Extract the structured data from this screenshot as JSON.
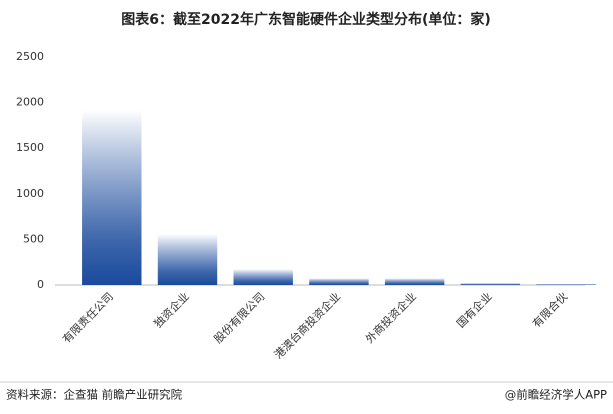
{
  "chart_data": {
    "type": "bar",
    "title": "图表6：截至2022年广东智能硬件企业类型分布(单位：家)",
    "categories": [
      "有限责任公司",
      "独资企业",
      "股份有限公司",
      "港澳台商投资企业",
      "外商投资企业",
      "国有企业",
      "有限合伙"
    ],
    "values": [
      1920,
      560,
      175,
      75,
      75,
      20,
      10
    ],
    "color": "#1a4a9c",
    "ylim": [
      0,
      2500
    ],
    "yticks": [
      0,
      500,
      1000,
      1500,
      2000,
      2500
    ],
    "grid": false
  },
  "footer": {
    "source": "资料来源：企查猫 前瞻产业研究院",
    "brand": "@前瞻经济学人APP"
  }
}
